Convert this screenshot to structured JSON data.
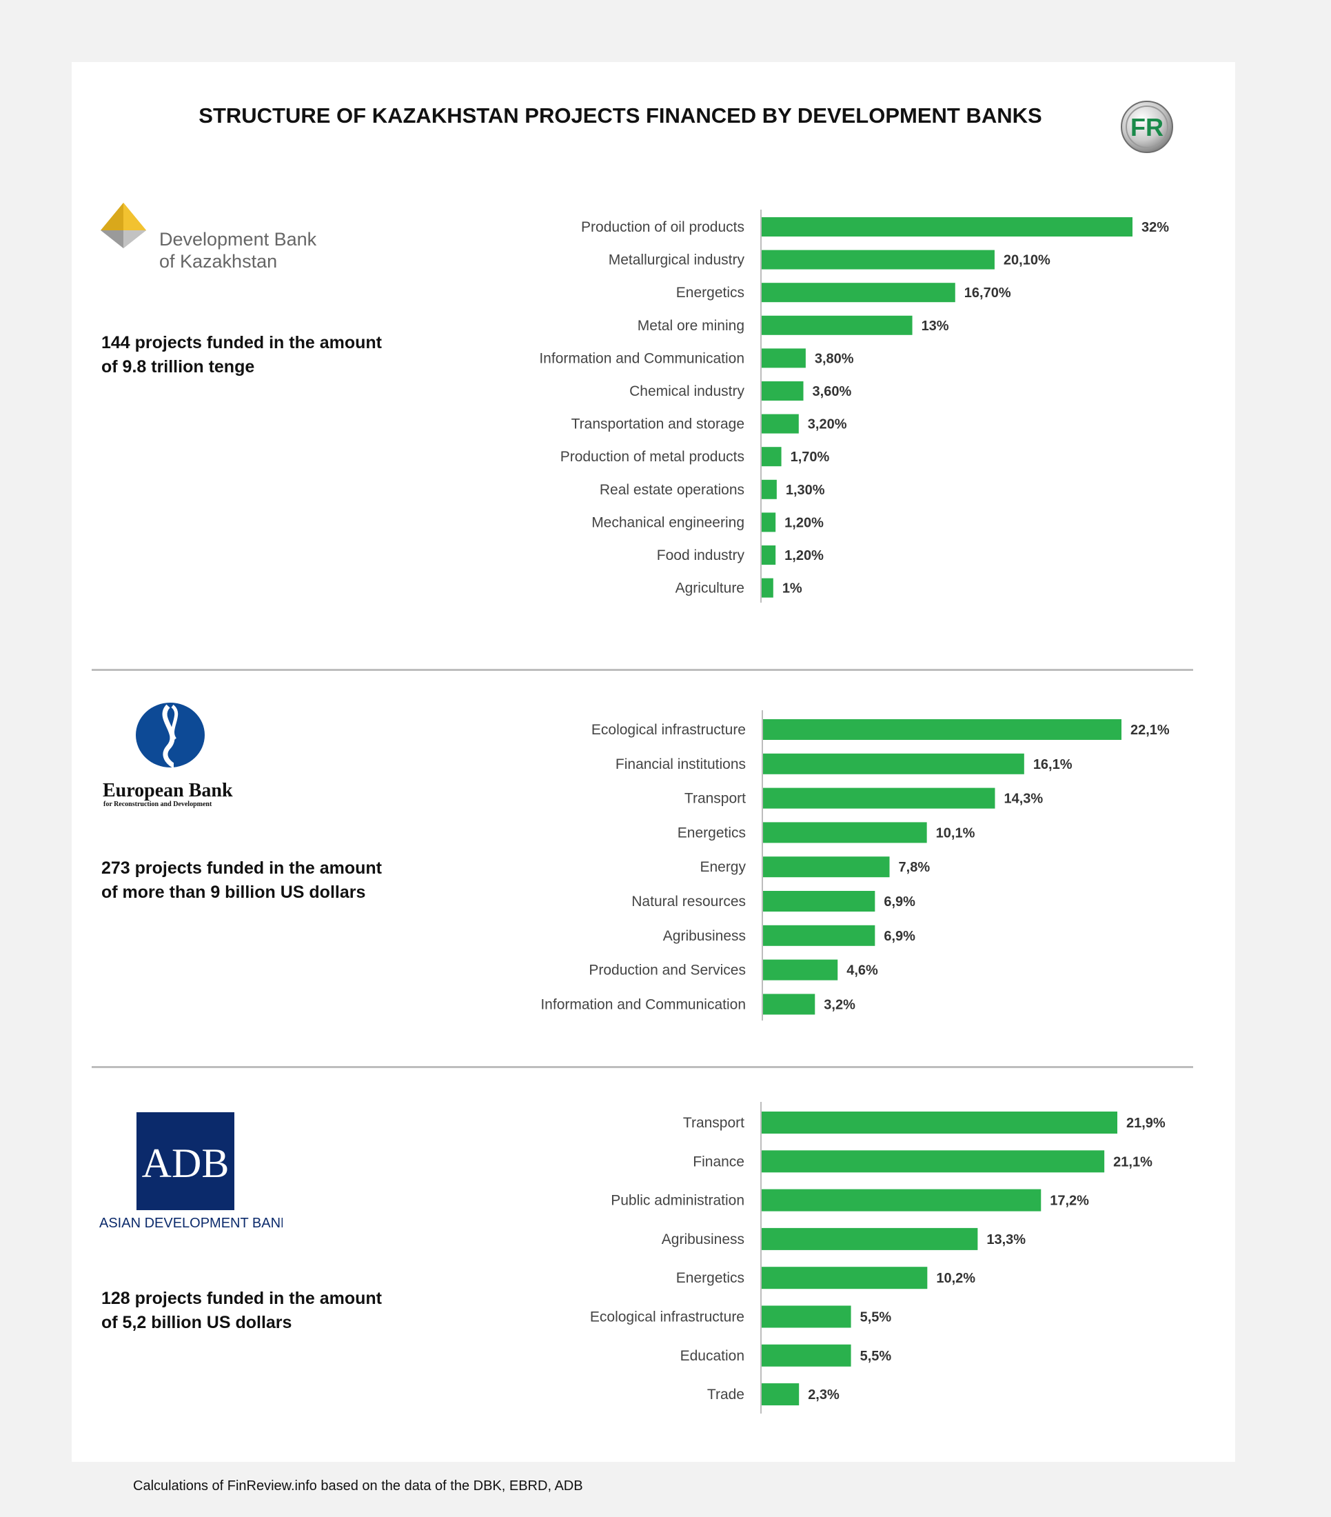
{
  "title": "STRUCTURE OF KAZAKHSTAN PROJECTS FINANCED BY DEVELOPMENT BANKS",
  "logos": {
    "fr": "FR",
    "dbk_line1": "Development Bank",
    "dbk_line2": "of Kazakhstan",
    "ebrd_line1": "European Bank",
    "ebrd_line2": "for Reconstruction and Development",
    "adb_mark": "ADB",
    "adb_name": "ASIAN DEVELOPMENT BANK"
  },
  "sections": [
    {
      "summary": "144 projects funded in the amount\nof 9.8 trillion tenge"
    },
    {
      "summary": "273 projects funded in the amount\nof more than 9 billion US dollars"
    },
    {
      "summary": "128 projects funded in the amount\nof 5,2 billion US dollars"
    }
  ],
  "footnote": "Calculations of FinReview.info based on the data of the DBK, EBRD, ADB",
  "colors": {
    "bar": "#2ab14d",
    "axis": "#bdbdbd",
    "adb_blue": "#0b2a6b",
    "ebrd_blue": "#0d4a96"
  },
  "chart_data": [
    {
      "type": "bar",
      "orientation": "horizontal",
      "categories": [
        "Production of oil products",
        "Metallurgical industry",
        "Energetics",
        "Metal ore mining",
        "Information and Communication",
        "Chemical industry",
        "Transportation and storage",
        "Production of metal products",
        "Real estate operations",
        "Mechanical engineering",
        "Food industry",
        "Agriculture"
      ],
      "values": [
        32,
        20.1,
        16.7,
        13,
        3.8,
        3.6,
        3.2,
        1.7,
        1.3,
        1.2,
        1.2,
        1
      ],
      "labels": [
        "32%",
        "20,10%",
        "16,70%",
        "13%",
        "3,80%",
        "3,60%",
        "3,20%",
        "1,70%",
        "1,30%",
        "1,20%",
        "1,20%",
        "1%"
      ],
      "xlim": [
        0,
        32
      ]
    },
    {
      "type": "bar",
      "orientation": "horizontal",
      "categories": [
        "Ecological infrastructure",
        "Financial institutions",
        "Transport",
        "Energetics",
        "Energy",
        "Natural resources",
        "Agribusiness",
        "Production and Services",
        "Information and Communication"
      ],
      "values": [
        22.1,
        16.1,
        14.3,
        10.1,
        7.8,
        6.9,
        6.9,
        4.6,
        3.2
      ],
      "labels": [
        "22,1%",
        "16,1%",
        "14,3%",
        "10,1%",
        "7,8%",
        "6,9%",
        "6,9%",
        "4,6%",
        "3,2%"
      ],
      "xlim": [
        0,
        22.1
      ]
    },
    {
      "type": "bar",
      "orientation": "horizontal",
      "categories": [
        "Transport",
        "Finance",
        "Public administration",
        "Agribusiness",
        "Energetics",
        "Ecological infrastructure",
        "Education",
        "Trade"
      ],
      "values": [
        21.9,
        21.1,
        17.2,
        13.3,
        10.2,
        5.5,
        5.5,
        2.3
      ],
      "labels": [
        "21,9%",
        "21,1%",
        "17,2%",
        "13,3%",
        "10,2%",
        "5,5%",
        "5,5%",
        "2,3%"
      ],
      "xlim": [
        0,
        21.9
      ]
    }
  ]
}
